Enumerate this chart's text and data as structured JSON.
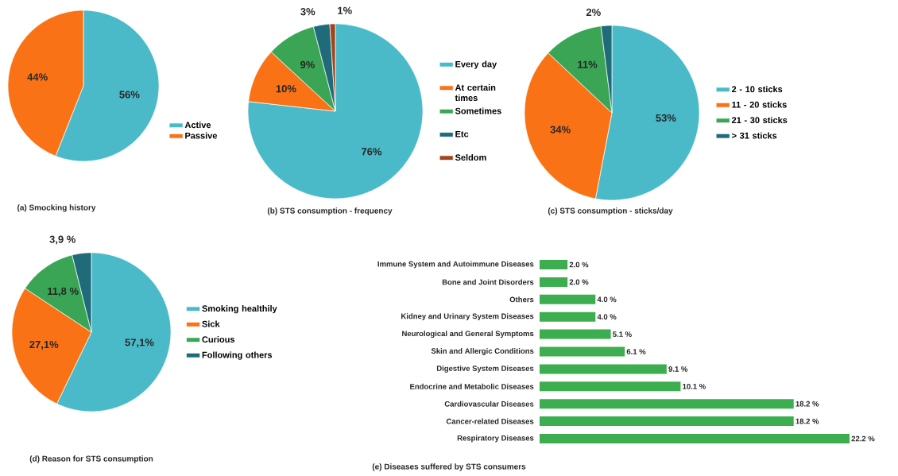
{
  "chart_data": [
    {
      "type": "pie",
      "title": "(a) Smocking history",
      "categories": [
        "Active",
        "Passive"
      ],
      "values": [
        56,
        44
      ],
      "value_labels": [
        "56%",
        "44%"
      ],
      "colors": [
        "#4bbac8",
        "#f97316"
      ],
      "legend": "bottom right"
    },
    {
      "type": "pie",
      "title": "(b) STS consumption - frequency",
      "categories": [
        "Every day",
        "At certain times",
        "Sometimes",
        "Etc",
        "Seldom"
      ],
      "values": [
        76,
        10,
        9,
        3,
        1
      ],
      "value_labels": [
        "76%",
        "10%",
        "9%",
        "3%",
        "1%"
      ],
      "colors": [
        "#4bbac8",
        "#f97316",
        "#3aa655",
        "#1f6b7a",
        "#a0461c"
      ],
      "legend": "right"
    },
    {
      "type": "pie",
      "title": "(c) STS consumption - sticks/day",
      "categories": [
        "2 - 10 sticks",
        "11 - 20 sticks",
        "21 - 30 sticks",
        "> 31 sticks"
      ],
      "values": [
        53,
        34,
        11,
        2
      ],
      "value_labels": [
        "53%",
        "34%",
        "11%",
        "2%"
      ],
      "colors": [
        "#4bbac8",
        "#f97316",
        "#3aa655",
        "#1f6b7a"
      ],
      "legend": "right"
    },
    {
      "type": "pie",
      "title": "(d) Reason for STS consumption",
      "categories": [
        "Smoking healthily",
        "Sick",
        "Curious",
        "Following others"
      ],
      "values": [
        57.1,
        27.1,
        11.8,
        3.9
      ],
      "value_labels": [
        "57,1%",
        "27,1%",
        "11,8 %",
        "3,9 %"
      ],
      "colors": [
        "#4bbac8",
        "#f97316",
        "#3aa655",
        "#1f6b7a"
      ],
      "legend": "right"
    },
    {
      "type": "bar",
      "orientation": "horizontal",
      "title": "(e) Diseases suffered by STS consumers",
      "categories": [
        "Immune System and Autoimmune Diseases",
        "Bone and Joint Disorders",
        "Others",
        "Kidney and Urinary System Diseases",
        "Neurological and General Symptoms",
        "Skin and Allergic Conditions",
        "Digestive System Diseases",
        "Endocrine and Metabolic Diseases",
        "Cardiovascular Diseases",
        "Cancer-related Diseases",
        "Respiratory Diseases"
      ],
      "values": [
        2.0,
        2.0,
        4.0,
        4.0,
        5.1,
        6.1,
        9.1,
        10.1,
        18.2,
        18.2,
        22.2
      ],
      "value_labels": [
        "2.0 %",
        "2.0 %",
        "4.0 %",
        "4.0 %",
        "5.1 %",
        "6.1 %",
        "9.1 %",
        "10.1 %",
        "18.2 %",
        "18.2 %",
        "22.2 %"
      ],
      "color": "#3cae4f"
    }
  ]
}
